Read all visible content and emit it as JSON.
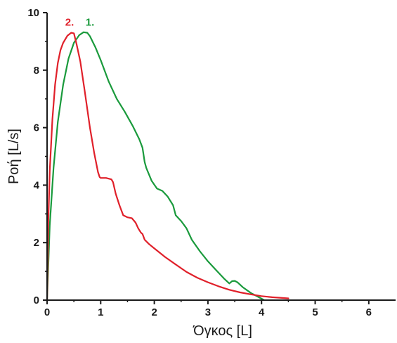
{
  "chart_data": {
    "type": "line",
    "title": "",
    "xlabel": "Όγκος [L]",
    "ylabel": "Ροή [L/s]",
    "xlim": [
      0,
      6.5
    ],
    "ylim": [
      0,
      10
    ],
    "x_ticks": [
      "0",
      "1",
      "2",
      "3",
      "4",
      "5",
      "6"
    ],
    "y_ticks": [
      "0",
      "2",
      "4",
      "6",
      "8",
      "10"
    ],
    "grid": false,
    "series": [
      {
        "name": "1.",
        "color": "#1a9a3c",
        "x": [
          0,
          0.05,
          0.12,
          0.2,
          0.3,
          0.4,
          0.5,
          0.6,
          0.68,
          0.75,
          0.8,
          0.9,
          1.0,
          1.15,
          1.3,
          1.45,
          1.6,
          1.72,
          1.78,
          1.82,
          1.85,
          1.95,
          2.05,
          2.15,
          2.25,
          2.35,
          2.4,
          2.5,
          2.6,
          2.7,
          2.85,
          3.0,
          3.15,
          3.3,
          3.4,
          3.45,
          3.5,
          3.55,
          3.65,
          3.8,
          3.95,
          4.05
        ],
        "y": [
          0,
          2.6,
          4.6,
          6.2,
          7.5,
          8.4,
          8.95,
          9.22,
          9.32,
          9.3,
          9.18,
          8.8,
          8.35,
          7.6,
          7.0,
          6.55,
          6.05,
          5.6,
          5.3,
          4.8,
          4.6,
          4.15,
          3.88,
          3.8,
          3.6,
          3.3,
          2.95,
          2.75,
          2.5,
          2.1,
          1.7,
          1.35,
          1.05,
          0.75,
          0.58,
          0.66,
          0.67,
          0.62,
          0.45,
          0.25,
          0.1,
          0.0
        ]
      },
      {
        "name": "2.",
        "color": "#e0202a",
        "x": [
          0,
          0.02,
          0.05,
          0.1,
          0.15,
          0.2,
          0.25,
          0.3,
          0.38,
          0.45,
          0.5,
          0.55,
          0.62,
          0.7,
          0.8,
          0.88,
          0.95,
          0.98,
          1.0,
          1.1,
          1.2,
          1.23,
          1.28,
          1.35,
          1.42,
          1.5,
          1.58,
          1.65,
          1.7,
          1.75,
          1.78,
          1.82,
          1.9,
          2.0,
          2.2,
          2.4,
          2.6,
          2.8,
          3.0,
          3.2,
          3.4,
          3.6,
          3.8,
          4.0,
          4.2,
          4.5
        ],
        "y": [
          0,
          2.5,
          4.5,
          6.3,
          7.5,
          8.25,
          8.7,
          8.95,
          9.2,
          9.3,
          9.28,
          8.9,
          8.3,
          7.3,
          6.0,
          5.1,
          4.45,
          4.28,
          4.25,
          4.25,
          4.2,
          4.1,
          3.7,
          3.3,
          2.95,
          2.88,
          2.85,
          2.7,
          2.5,
          2.35,
          2.3,
          2.1,
          1.95,
          1.8,
          1.5,
          1.24,
          0.98,
          0.78,
          0.62,
          0.48,
          0.36,
          0.27,
          0.2,
          0.14,
          0.1,
          0.06
        ]
      }
    ],
    "annotations": [
      {
        "text": "1.",
        "series": "1.",
        "x": 0.8,
        "y": 9.55
      },
      {
        "text": "2.",
        "series": "2.",
        "x": 0.42,
        "y": 9.55
      }
    ]
  }
}
